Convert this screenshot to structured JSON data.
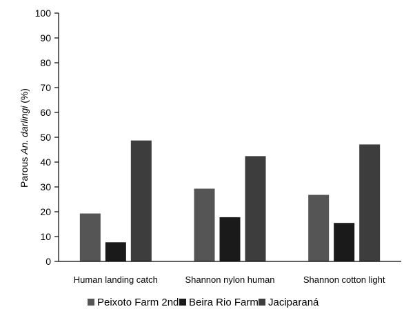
{
  "chart_data": {
    "type": "bar",
    "categories": [
      "Human landing catch",
      "Shannon nylon human",
      "Shannon cotton light"
    ],
    "series": [
      {
        "name": "Peixoto Farm 2nd",
        "values": [
          19.3,
          29.3,
          26.8
        ],
        "color": "#555555"
      },
      {
        "name": "Beira Rio Farm",
        "values": [
          7.7,
          17.8,
          15.5
        ],
        "color": "#1a1a1a"
      },
      {
        "name": "Jaciparaná",
        "values": [
          48.7,
          42.4,
          47.1
        ],
        "color": "#3d3d3d"
      }
    ],
    "title": "",
    "xlabel": "",
    "ylabel": {
      "prefix": "Parous ",
      "italic": "An. darlingi",
      "suffix": " (%)"
    },
    "ylim": [
      0,
      100
    ],
    "yticks": [
      0,
      10,
      20,
      30,
      40,
      50,
      60,
      70,
      80,
      90,
      100
    ],
    "grid": false,
    "legend_position": "bottom"
  }
}
